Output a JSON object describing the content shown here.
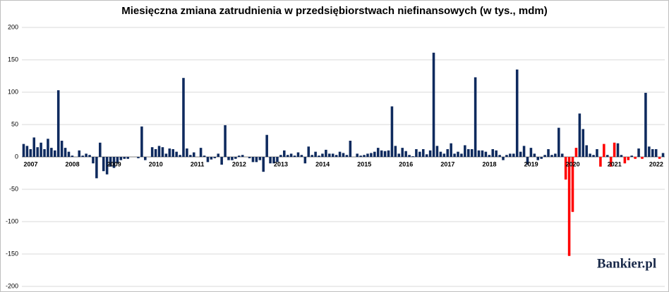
{
  "chart_data": {
    "type": "bar",
    "title": "Miesięczna zmiana zatrudnienia w przedsiębiorstwach niefinansowych (w tys., mdm)",
    "watermark": "Bankier.pl",
    "categories": [
      "2007",
      null,
      null,
      null,
      null,
      null,
      null,
      null,
      null,
      null,
      null,
      null,
      "2008",
      null,
      null,
      null,
      null,
      null,
      null,
      null,
      null,
      null,
      null,
      null,
      "2009",
      null,
      null,
      null,
      null,
      null,
      null,
      null,
      null,
      null,
      null,
      null,
      "2010",
      null,
      null,
      null,
      null,
      null,
      null,
      null,
      null,
      null,
      null,
      null,
      "2011",
      null,
      null,
      null,
      null,
      null,
      null,
      null,
      null,
      null,
      null,
      null,
      "2012",
      null,
      null,
      null,
      null,
      null,
      null,
      null,
      null,
      null,
      null,
      null,
      "2013",
      null,
      null,
      null,
      null,
      null,
      null,
      null,
      null,
      null,
      null,
      null,
      "2014",
      null,
      null,
      null,
      null,
      null,
      null,
      null,
      null,
      null,
      null,
      null,
      "2015",
      null,
      null,
      null,
      null,
      null,
      null,
      null,
      null,
      null,
      null,
      null,
      "2016",
      null,
      null,
      null,
      null,
      null,
      null,
      null,
      null,
      null,
      null,
      null,
      "2017",
      null,
      null,
      null,
      null,
      null,
      null,
      null,
      null,
      null,
      null,
      null,
      "2018",
      null,
      null,
      null,
      null,
      null,
      null,
      null,
      null,
      null,
      null,
      null,
      "2019",
      null,
      null,
      null,
      null,
      null,
      null,
      null,
      null,
      null,
      null,
      null,
      "2020",
      null,
      null,
      null,
      null,
      null,
      null,
      null,
      null,
      null,
      null,
      null,
      "2021",
      null,
      null,
      null,
      null,
      null,
      null,
      null,
      null,
      null,
      null,
      null,
      "2022",
      null,
      null,
      null,
      null
    ],
    "values": [
      20,
      17,
      12,
      30,
      15,
      22,
      12,
      28,
      14,
      10,
      103,
      25,
      14,
      8,
      2,
      0,
      10,
      2,
      5,
      3,
      -10,
      -33,
      22,
      -22,
      -27,
      -15,
      -17,
      -10,
      -5,
      -3,
      -3,
      0,
      0,
      -2,
      47,
      -5,
      0,
      15,
      12,
      17,
      15,
      5,
      13,
      12,
      8,
      3,
      122,
      13,
      3,
      7,
      0,
      14,
      2,
      -8,
      -4,
      -2,
      5,
      -12,
      49,
      -5,
      -5,
      -3,
      2,
      3,
      0,
      -2,
      -8,
      -8,
      -5,
      -23,
      34,
      -10,
      -10,
      -8,
      3,
      10,
      3,
      5,
      2,
      7,
      3,
      -10,
      16,
      3,
      8,
      2,
      5,
      11,
      5,
      5,
      3,
      8,
      6,
      3,
      25,
      0,
      5,
      2,
      3,
      5,
      6,
      8,
      14,
      10,
      9,
      10,
      78,
      17,
      5,
      14,
      9,
      3,
      1,
      12,
      8,
      12,
      4,
      10,
      161,
      17,
      8,
      5,
      12,
      21,
      5,
      8,
      5,
      18,
      12,
      12,
      123,
      10,
      10,
      8,
      3,
      12,
      10,
      3,
      -5,
      3,
      5,
      5,
      135,
      8,
      17,
      -12,
      14,
      5,
      -5,
      -3,
      3,
      12,
      3,
      5,
      45,
      5,
      -35,
      -153,
      -85,
      14,
      67,
      43,
      18,
      5,
      3,
      12,
      -15,
      20,
      3,
      -15,
      22,
      21,
      3,
      -10,
      -5,
      2,
      -3,
      13,
      -3,
      99,
      16,
      12,
      12,
      -3,
      6
    ],
    "colors": [
      "#0e2a5e",
      "#0e2a5e",
      "#0e2a5e",
      "#0e2a5e",
      "#0e2a5e",
      "#0e2a5e",
      "#0e2a5e",
      "#0e2a5e",
      "#0e2a5e",
      "#0e2a5e",
      "#0e2a5e",
      "#0e2a5e",
      "#0e2a5e",
      "#0e2a5e",
      "#0e2a5e",
      "#0e2a5e",
      "#0e2a5e",
      "#0e2a5e",
      "#0e2a5e",
      "#0e2a5e",
      "#0e2a5e",
      "#0e2a5e",
      "#0e2a5e",
      "#0e2a5e",
      "#0e2a5e",
      "#0e2a5e",
      "#0e2a5e",
      "#0e2a5e",
      "#0e2a5e",
      "#0e2a5e",
      "#0e2a5e",
      "#0e2a5e",
      "#0e2a5e",
      "#0e2a5e",
      "#0e2a5e",
      "#0e2a5e",
      "#0e2a5e",
      "#0e2a5e",
      "#0e2a5e",
      "#0e2a5e",
      "#0e2a5e",
      "#0e2a5e",
      "#0e2a5e",
      "#0e2a5e",
      "#0e2a5e",
      "#0e2a5e",
      "#0e2a5e",
      "#0e2a5e",
      "#0e2a5e",
      "#0e2a5e",
      "#0e2a5e",
      "#0e2a5e",
      "#0e2a5e",
      "#0e2a5e",
      "#0e2a5e",
      "#0e2a5e",
      "#0e2a5e",
      "#0e2a5e",
      "#0e2a5e",
      "#0e2a5e",
      "#0e2a5e",
      "#0e2a5e",
      "#0e2a5e",
      "#0e2a5e",
      "#0e2a5e",
      "#0e2a5e",
      "#0e2a5e",
      "#0e2a5e",
      "#0e2a5e",
      "#0e2a5e",
      "#0e2a5e",
      "#0e2a5e",
      "#0e2a5e",
      "#0e2a5e",
      "#0e2a5e",
      "#0e2a5e",
      "#0e2a5e",
      "#0e2a5e",
      "#0e2a5e",
      "#0e2a5e",
      "#0e2a5e",
      "#0e2a5e",
      "#0e2a5e",
      "#0e2a5e",
      "#0e2a5e",
      "#0e2a5e",
      "#0e2a5e",
      "#0e2a5e",
      "#0e2a5e",
      "#0e2a5e",
      "#0e2a5e",
      "#0e2a5e",
      "#0e2a5e",
      "#0e2a5e",
      "#0e2a5e",
      "#0e2a5e",
      "#0e2a5e",
      "#0e2a5e",
      "#0e2a5e",
      "#0e2a5e",
      "#0e2a5e",
      "#0e2a5e",
      "#0e2a5e",
      "#0e2a5e",
      "#0e2a5e",
      "#0e2a5e",
      "#0e2a5e",
      "#0e2a5e",
      "#0e2a5e",
      "#0e2a5e",
      "#0e2a5e",
      "#0e2a5e",
      "#0e2a5e",
      "#0e2a5e",
      "#0e2a5e",
      "#0e2a5e",
      "#0e2a5e",
      "#0e2a5e",
      "#0e2a5e",
      "#0e2a5e",
      "#0e2a5e",
      "#0e2a5e",
      "#0e2a5e",
      "#0e2a5e",
      "#0e2a5e",
      "#0e2a5e",
      "#0e2a5e",
      "#0e2a5e",
      "#0e2a5e",
      "#0e2a5e",
      "#0e2a5e",
      "#0e2a5e",
      "#0e2a5e",
      "#0e2a5e",
      "#0e2a5e",
      "#0e2a5e",
      "#0e2a5e",
      "#0e2a5e",
      "#0e2a5e",
      "#0e2a5e",
      "#0e2a5e",
      "#0e2a5e",
      "#0e2a5e",
      "#0e2a5e",
      "#0e2a5e",
      "#0e2a5e",
      "#0e2a5e",
      "#0e2a5e",
      "#0e2a5e",
      "#0e2a5e",
      "#0e2a5e",
      "#0e2a5e",
      "#0e2a5e",
      "#0e2a5e",
      "#0e2a5e",
      "#0e2a5e",
      "#ff0000",
      "#ff0000",
      "#ff0000",
      "#ff0000",
      "#0e2a5e",
      "#0e2a5e",
      "#0e2a5e",
      "#0e2a5e",
      "#0e2a5e",
      "#0e2a5e",
      "#ff0000",
      "#ff0000",
      "#0e2a5e",
      "#ff0000",
      "#ff0000",
      "#0e2a5e",
      "#0e2a5e",
      "#ff0000",
      "#ff0000",
      "#0e2a5e",
      "#ff0000",
      "#0e2a5e",
      "#ff0000",
      "#0e2a5e",
      "#0e2a5e",
      "#0e2a5e",
      "#0e2a5e",
      "#ff0000",
      "#0e2a5e"
    ],
    "ylim": [
      -200,
      200
    ],
    "yticks": [
      -200,
      -150,
      -100,
      -50,
      0,
      50,
      100,
      150,
      200
    ],
    "grid": true
  }
}
